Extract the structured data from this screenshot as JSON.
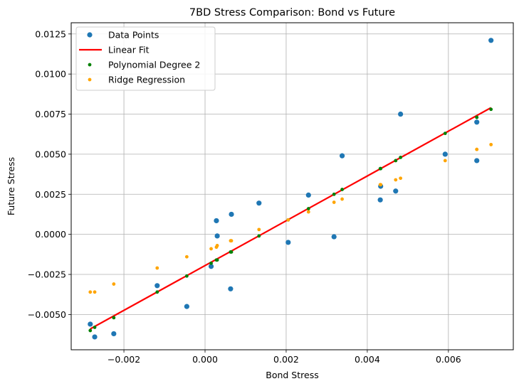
{
  "chart_data": {
    "type": "scatter",
    "title": "7BD Stress Comparison: Bond vs Future",
    "xlabel": "Bond Stress",
    "ylabel": "Future Stress",
    "xlim": [
      -0.0033,
      0.0076
    ],
    "ylim": [
      -0.0072,
      0.0132
    ],
    "xticks": [
      -0.002,
      0.0,
      0.002,
      0.004,
      0.006
    ],
    "xtick_labels": [
      "−0.002",
      "0.000",
      "0.002",
      "0.004",
      "0.006"
    ],
    "yticks": [
      -0.005,
      -0.0025,
      0.0,
      0.0025,
      0.005,
      0.0075,
      0.01,
      0.0125
    ],
    "ytick_labels": [
      "−0.0050",
      "−0.0025",
      "0.0000",
      "0.0025",
      "0.0050",
      "0.0075",
      "0.0100",
      "0.0125"
    ],
    "grid": true,
    "legend_position": "top-left",
    "series": [
      {
        "name": "Data Points",
        "kind": "scatter",
        "color": "#1f77b4",
        "points": [
          [
            -0.00283,
            -0.0056
          ],
          [
            -0.00272,
            -0.0064
          ],
          [
            -0.00225,
            -0.0062
          ],
          [
            -0.00118,
            -0.0032
          ],
          [
            -0.00045,
            -0.0045
          ],
          [
            0.00015,
            -0.002
          ],
          [
            0.00028,
            0.00085
          ],
          [
            0.0003,
            -0.0001
          ],
          [
            0.00063,
            -0.0034
          ],
          [
            0.00065,
            0.00125
          ],
          [
            0.00133,
            0.00195
          ],
          [
            0.00205,
            -0.0005
          ],
          [
            0.00255,
            0.00245
          ],
          [
            0.00318,
            -0.00015
          ],
          [
            0.00338,
            0.0049
          ],
          [
            0.00432,
            0.00215
          ],
          [
            0.00433,
            0.003
          ],
          [
            0.0047,
            0.0027
          ],
          [
            0.00482,
            0.0075
          ],
          [
            0.00592,
            0.005
          ],
          [
            0.0067,
            0.007
          ],
          [
            0.0067,
            0.0046
          ],
          [
            0.00705,
            0.0121
          ]
        ]
      },
      {
        "name": "Linear Fit",
        "kind": "line",
        "color": "#ff0000",
        "points": [
          [
            -0.00283,
            -0.0059
          ],
          [
            0.00705,
            0.0079
          ]
        ]
      },
      {
        "name": "Polynomial Degree 2",
        "kind": "scatter",
        "color": "#008000",
        "points": [
          [
            -0.00283,
            -0.006
          ],
          [
            -0.00272,
            -0.0058
          ],
          [
            -0.00225,
            -0.0052
          ],
          [
            -0.00118,
            -0.0036
          ],
          [
            -0.00045,
            -0.0026
          ],
          [
            0.00015,
            -0.0018
          ],
          [
            0.00028,
            -0.0016
          ],
          [
            0.0003,
            -0.0016
          ],
          [
            0.00063,
            -0.0011
          ],
          [
            0.00065,
            -0.0011
          ],
          [
            0.00133,
            -0.0001
          ],
          [
            0.00205,
            0.0009
          ],
          [
            0.00255,
            0.0016
          ],
          [
            0.00318,
            0.0025
          ],
          [
            0.00338,
            0.0028
          ],
          [
            0.00432,
            0.0041
          ],
          [
            0.00433,
            0.0041
          ],
          [
            0.0047,
            0.0046
          ],
          [
            0.00482,
            0.0048
          ],
          [
            0.00592,
            0.0063
          ],
          [
            0.0067,
            0.0073
          ],
          [
            0.0067,
            0.0073
          ],
          [
            0.00705,
            0.0078
          ]
        ]
      },
      {
        "name": "Ridge Regression",
        "kind": "scatter",
        "color": "#ffa500",
        "points": [
          [
            -0.00283,
            -0.0036
          ],
          [
            -0.00272,
            -0.0036
          ],
          [
            -0.00225,
            -0.0031
          ],
          [
            -0.00118,
            -0.0021
          ],
          [
            -0.00045,
            -0.0014
          ],
          [
            0.00015,
            -0.0009
          ],
          [
            0.00028,
            -0.0008
          ],
          [
            0.0003,
            -0.0007
          ],
          [
            0.00063,
            -0.0004
          ],
          [
            0.00065,
            -0.0004
          ],
          [
            0.00133,
            0.0003
          ],
          [
            0.00205,
            0.0009
          ],
          [
            0.00255,
            0.0014
          ],
          [
            0.00318,
            0.002
          ],
          [
            0.00338,
            0.0022
          ],
          [
            0.00432,
            0.0031
          ],
          [
            0.00433,
            0.0031
          ],
          [
            0.0047,
            0.0034
          ],
          [
            0.00482,
            0.0035
          ],
          [
            0.00592,
            0.0046
          ],
          [
            0.0067,
            0.0053
          ],
          [
            0.0067,
            0.0053
          ],
          [
            0.00705,
            0.0056
          ]
        ]
      }
    ]
  }
}
